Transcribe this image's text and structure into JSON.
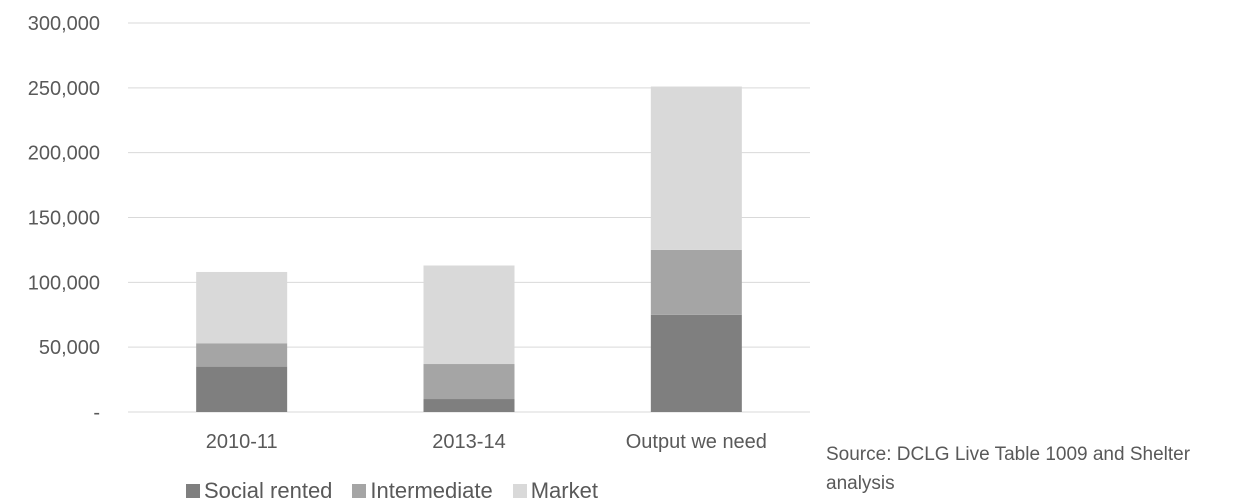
{
  "chart_data": {
    "type": "bar",
    "stacked": true,
    "categories": [
      "2010-11",
      "2013-14",
      "Output we need"
    ],
    "series": [
      {
        "name": "Social rented",
        "values": [
          35000,
          10000,
          75000
        ],
        "color": "#7f7f7f"
      },
      {
        "name": "Intermediate",
        "values": [
          18000,
          27000,
          50000
        ],
        "color": "#a5a5a5"
      },
      {
        "name": "Market",
        "values": [
          55000,
          76000,
          126000
        ],
        "color": "#d9d9d9"
      }
    ],
    "yticks": [
      "-",
      "50,000",
      "100,000",
      "150,000",
      "200,000",
      "250,000",
      "300,000"
    ],
    "ylim": [
      0,
      300000
    ],
    "grid": true,
    "gridColor": "#d9d9d9",
    "legend_position": "bottom"
  },
  "source": "Source: DCLG Live Table 1009 and Shelter analysis"
}
